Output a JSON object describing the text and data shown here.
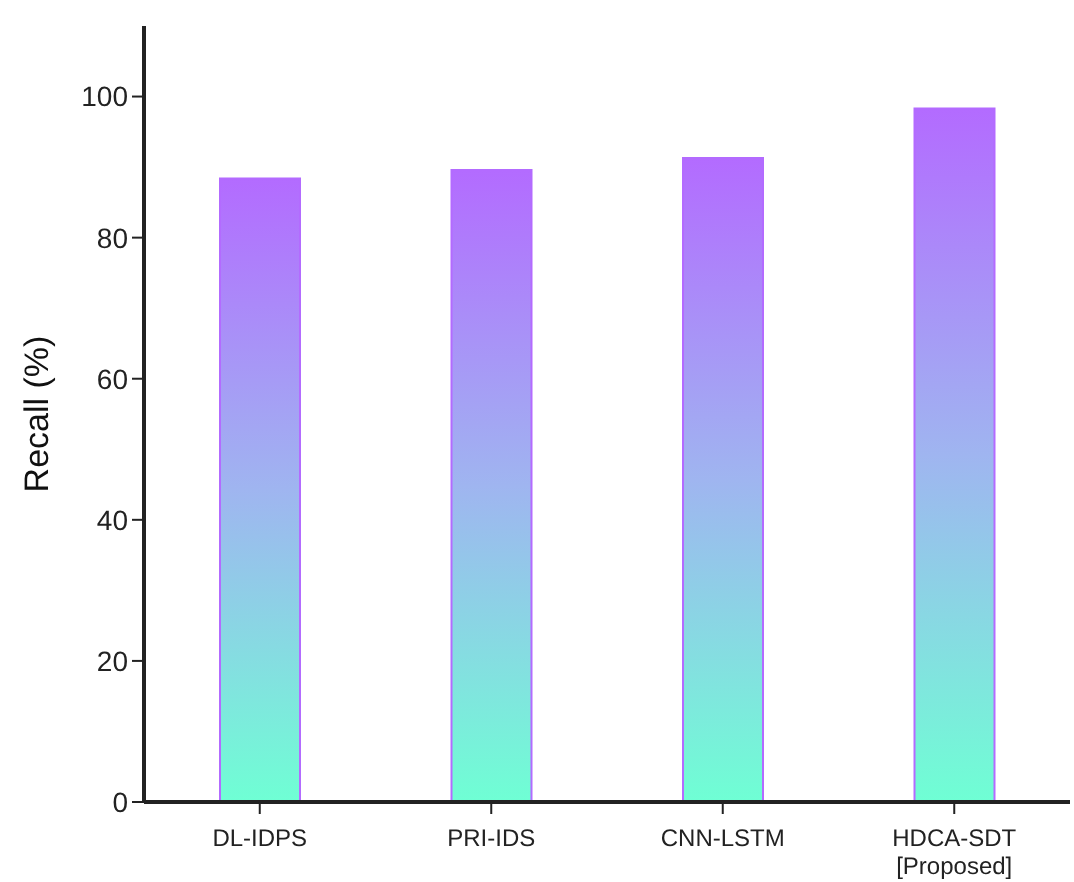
{
  "chart_data": {
    "type": "bar",
    "ylabel": "Recall (%)",
    "categories": [
      "DL-IDPS",
      "PRI-IDS",
      "CNN-LSTM",
      "HDCA-SDT [Proposed]"
    ],
    "values": [
      88.4,
      89.6,
      91.3,
      98.3
    ],
    "color": "#b36bff",
    "ylim": [
      0,
      110
    ],
    "yticks": [
      0,
      20,
      40,
      60,
      80,
      100
    ],
    "grid": false
  }
}
